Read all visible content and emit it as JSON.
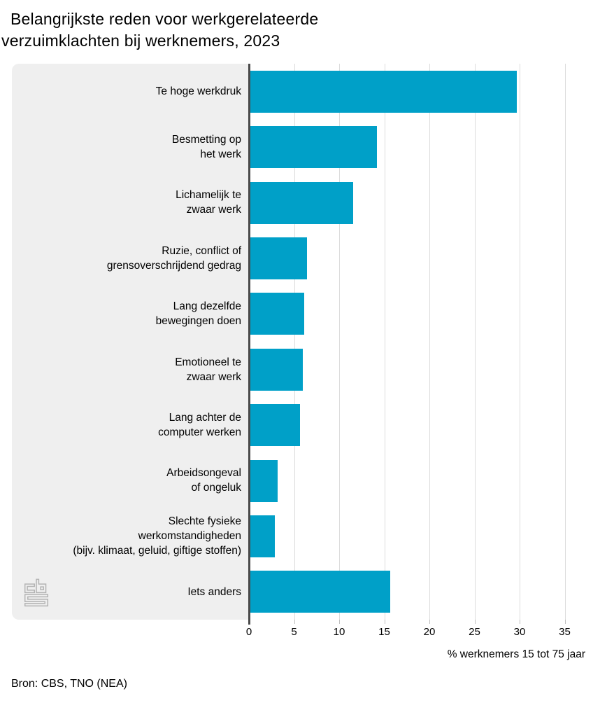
{
  "header": {
    "title_line1": "Belangrijkste reden voor werkgerelateerde",
    "title_line2": "verzuimklachten bij werknemers, 2023"
  },
  "source": "Bron: CBS, TNO (NEA)",
  "branding": {
    "logo": "cbs-logo"
  },
  "colors": {
    "bar": "#00a0c8",
    "panel_background": "#efefef",
    "gridline": "#dcdcdc",
    "axis_line": "#4a4a4a",
    "tick": "#bfbfbf",
    "logo": "#b3b3b3",
    "text": "#000000"
  },
  "chart_data": {
    "type": "bar",
    "orientation": "horizontal",
    "title": "Belangrijkste reden voor werkgerelateerde verzuimklachten bij werknemers, 2023",
    "categories": [
      "Te hoge werkdruk",
      "Besmetting op\nhet werk",
      "Lichamelijk te\nzwaar werk",
      "Ruzie, conflict of\ngrensoverschrijdend gedrag",
      "Lang dezelfde\nbewegingen doen",
      "Emotioneel te\nzwaar werk",
      "Lang achter de\ncomputer werken",
      "Arbeidsongeval\nof ongeluk",
      "Slechte fysieke\nwerkomstandigheden\n(bijv. klimaat, geluid, giftige stoffen)",
      "Iets anders"
    ],
    "values": [
      29.5,
      14,
      11.4,
      6.3,
      6,
      5.8,
      5.5,
      3,
      2.7,
      15.5
    ],
    "xlabel": "% werknemers 15 tot 75 jaar",
    "xlim": [
      0,
      35
    ],
    "xticks": [
      0,
      5,
      10,
      15,
      20,
      25,
      30,
      35
    ],
    "grid": true,
    "legend": false
  }
}
